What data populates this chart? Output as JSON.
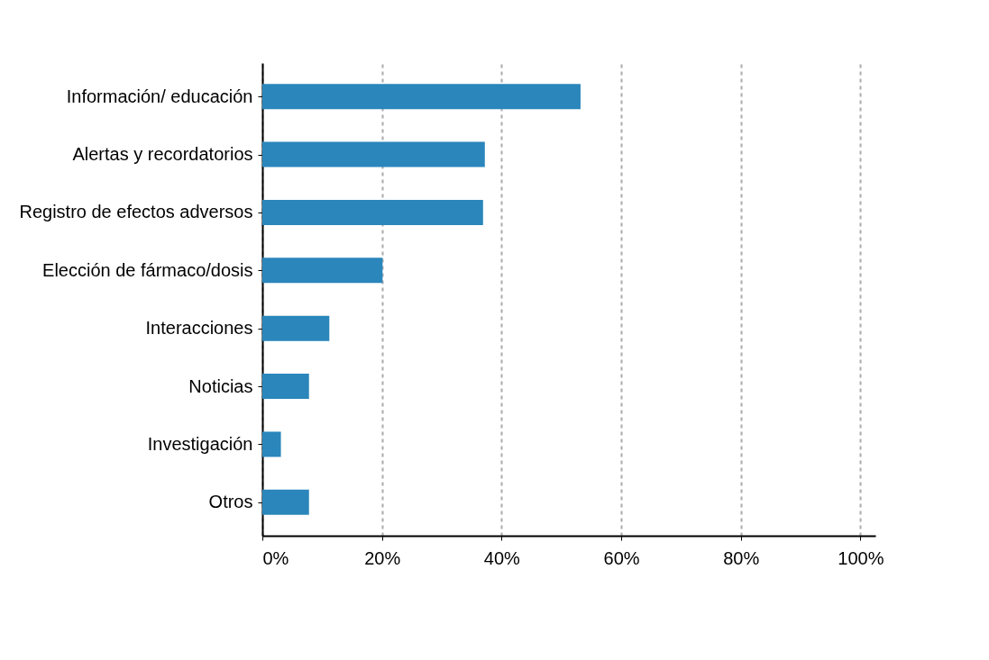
{
  "chart_data": {
    "type": "bar",
    "orientation": "horizontal",
    "categories": [
      "Información/ educación",
      "Alertas y recordatorios",
      "Registro de efectos adversos",
      "Elección de fármaco/dosis",
      "Interacciones",
      "Noticias",
      "Investigación",
      "Otros"
    ],
    "values": [
      53.2,
      37.2,
      36.9,
      20.1,
      11.2,
      7.8,
      3.1,
      7.8
    ],
    "color": "#2a86bb",
    "xlim": [
      0,
      102.5
    ],
    "xticks": [
      {
        "value": 0,
        "label": "0%"
      },
      {
        "value": 20,
        "label": "20%"
      },
      {
        "value": 40,
        "label": "40%"
      },
      {
        "value": 60,
        "label": "60%"
      },
      {
        "value": 80,
        "label": "80%"
      },
      {
        "value": 100,
        "label": "100%"
      }
    ],
    "grid": "x"
  }
}
